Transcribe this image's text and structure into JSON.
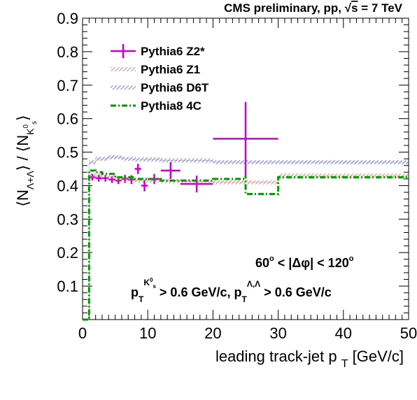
{
  "chart_data": {
    "type": "line",
    "title": "CMS preliminary, pp, √s = 7 TeV",
    "title_parts": {
      "prefix": "CMS preliminary, pp, ",
      "sqrt_s": "s",
      "suffix": " = 7 TeV"
    },
    "xlabel": "leading track-jet p",
    "xlabel_sub": "T",
    "xlabel_unit": "[GeV/c]",
    "ylabel": "⟨N_{Λ+Λ̄}⟩ / ⟨N_{K⁰s}⟩",
    "ylabel_parts": {
      "open1": "⟨N",
      "sub1": "Λ+Λ",
      "close1": "⟩ / ⟨N",
      "sub2": "K",
      "sub2_sup": "0",
      "sub2_sub": "s",
      "close2": "⟩"
    },
    "xlim": [
      0,
      50
    ],
    "ylim": [
      0,
      0.9
    ],
    "xticks": [
      "0",
      "10",
      "20",
      "30",
      "40",
      "50"
    ],
    "yticks": [
      "0.1",
      "0.2",
      "0.3",
      "0.4",
      "0.5",
      "0.6",
      "0.7",
      "0.8",
      "0.9"
    ],
    "legend_position": "top-left",
    "annotations": {
      "dphi": {
        "text": "60° < |Δφ| < 120°",
        "left": "60",
        "deg": "o",
        "mid": " < |Δφ| < 120"
      },
      "pt": {
        "p1": "p",
        "p1_sub": "T",
        "p1_sup": "K",
        "p1_sup_sup": "0",
        "p1_sup_sub": "s",
        "mid": " > 0.6 GeV/c, p",
        "p2_sub": "T",
        "p2_sup": "Λ,Λ",
        "end": " > 0.6 GeV/c"
      }
    },
    "series": [
      {
        "name": "Pythia6 Z2*",
        "color": "#cc00cc",
        "style": "points",
        "points": [
          {
            "x": 1.5,
            "y": 0.425,
            "xerr": 0.5,
            "yerr": 0.01
          },
          {
            "x": 2.5,
            "y": 0.422,
            "xerr": 0.5,
            "yerr": 0.01
          },
          {
            "x": 3.5,
            "y": 0.422,
            "xerr": 0.5,
            "yerr": 0.01
          },
          {
            "x": 4.5,
            "y": 0.418,
            "xerr": 0.5,
            "yerr": 0.01
          },
          {
            "x": 5.5,
            "y": 0.415,
            "xerr": 0.5,
            "yerr": 0.01
          },
          {
            "x": 6.5,
            "y": 0.42,
            "xerr": 0.5,
            "yerr": 0.012
          },
          {
            "x": 7.5,
            "y": 0.418,
            "xerr": 0.5,
            "yerr": 0.013
          },
          {
            "x": 8.5,
            "y": 0.45,
            "xerr": 0.5,
            "yerr": 0.015
          },
          {
            "x": 9.5,
            "y": 0.4,
            "xerr": 0.5,
            "yerr": 0.017
          },
          {
            "x": 11.0,
            "y": 0.42,
            "xerr": 1.0,
            "yerr": 0.015
          },
          {
            "x": 13.5,
            "y": 0.445,
            "xerr": 1.5,
            "yerr": 0.025
          },
          {
            "x": 17.5,
            "y": 0.405,
            "xerr": 2.5,
            "yerr": 0.025
          },
          {
            "x": 25.0,
            "y": 0.54,
            "xerr": 5.0,
            "yerr": 0.11
          }
        ]
      },
      {
        "name": "Pythia6 Z1",
        "color": "#cc6666",
        "style": "hatched-band",
        "steps": [
          [
            0,
            0
          ],
          [
            1,
            0.43
          ],
          [
            3,
            0.425
          ],
          [
            5,
            0.42
          ],
          [
            8,
            0.415
          ],
          [
            12,
            0.413
          ],
          [
            20,
            0.41
          ],
          [
            30,
            0.43
          ],
          [
            50,
            0.43
          ]
        ]
      },
      {
        "name": "Pythia6 D6T",
        "color": "#5555dd",
        "style": "hatched-band",
        "steps": [
          [
            0,
            0
          ],
          [
            1,
            0.47
          ],
          [
            2,
            0.48
          ],
          [
            4,
            0.485
          ],
          [
            6,
            0.48
          ],
          [
            8,
            0.478
          ],
          [
            12,
            0.475
          ],
          [
            20,
            0.47
          ],
          [
            30,
            0.47
          ],
          [
            50,
            0.47
          ]
        ]
      },
      {
        "name": "Pythia8 4C",
        "color": "#009900",
        "style": "dash-dot",
        "steps": [
          [
            0,
            0
          ],
          [
            1,
            0.445
          ],
          [
            2,
            0.44
          ],
          [
            3,
            0.435
          ],
          [
            5,
            0.425
          ],
          [
            8,
            0.42
          ],
          [
            12,
            0.415
          ],
          [
            20,
            0.42
          ],
          [
            25,
            0.43
          ],
          [
            25,
            0.375
          ],
          [
            30,
            0.375
          ],
          [
            30,
            0.425
          ],
          [
            50,
            0.425
          ]
        ]
      }
    ]
  }
}
